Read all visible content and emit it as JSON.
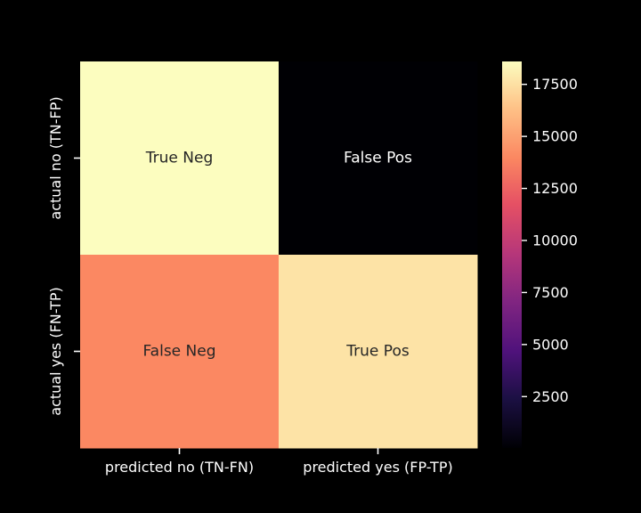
{
  "chart_data": {
    "type": "heatmap",
    "title": "",
    "xlabel": "",
    "ylabel": "",
    "colormap": "magma",
    "x_categories": [
      "predicted no (TN-FN)",
      "predicted yes (FP-TP)"
    ],
    "y_categories": [
      "actual no (TN-FP)",
      "actual yes (FN-TP)"
    ],
    "values": [
      [
        18600,
        30
      ],
      [
        14000,
        17600
      ]
    ],
    "annotations": [
      [
        "True Neg",
        "False Pos"
      ],
      [
        "False Neg",
        "True Pos"
      ]
    ],
    "colorbar": {
      "range": [
        30,
        18600
      ],
      "ticks": [
        2500,
        5000,
        7500,
        10000,
        12500,
        15000,
        17500
      ],
      "tick_labels": [
        "2500",
        "5000",
        "7500",
        "10000",
        "12500",
        "15000",
        "17500"
      ]
    },
    "grid": false
  }
}
